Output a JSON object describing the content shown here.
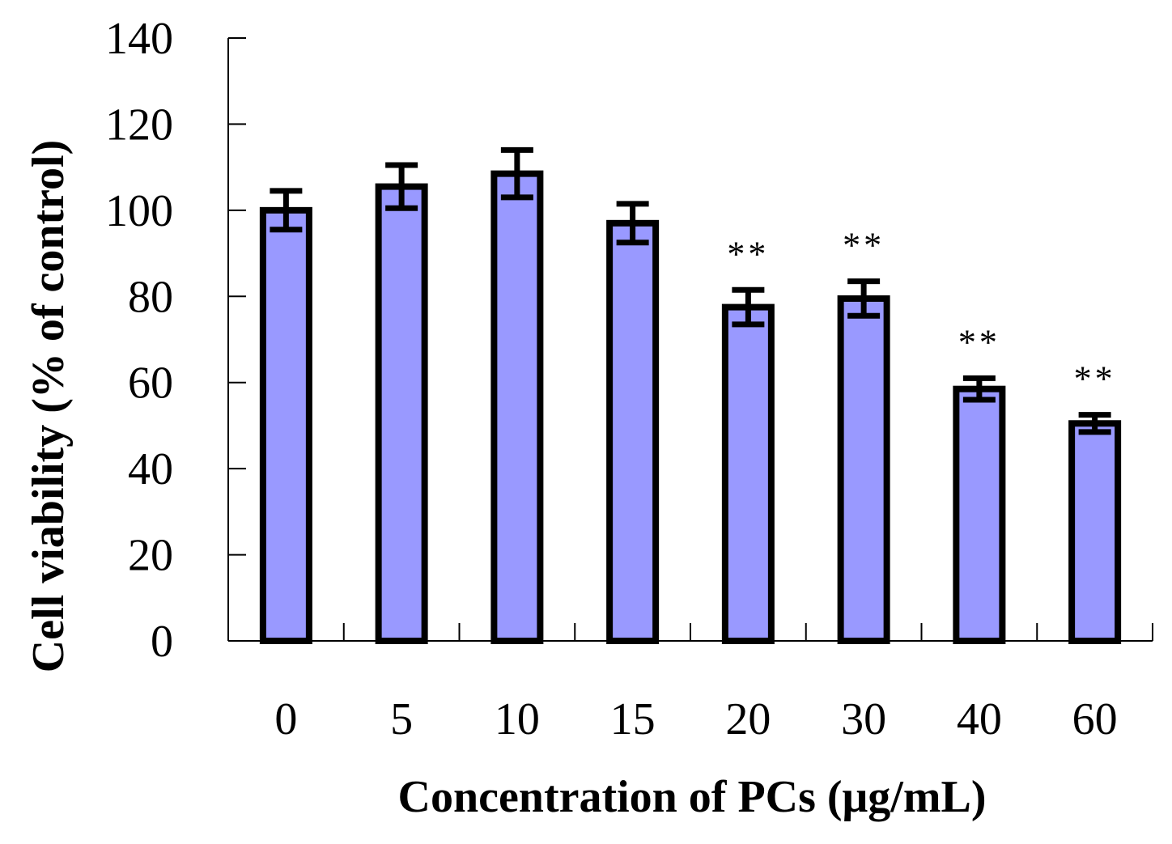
{
  "chart_data": {
    "type": "bar",
    "title": "",
    "xlabel": "Concentration of PCs (μg/mL)",
    "ylabel": "Cell viability (% of control)",
    "categories": [
      "0",
      "5",
      "10",
      "15",
      "20",
      "30",
      "40",
      "60"
    ],
    "values": [
      100,
      105.5,
      108.5,
      97,
      77.5,
      79.5,
      58.5,
      50.5
    ],
    "errors": [
      4.5,
      5,
      5.5,
      4.5,
      4,
      4,
      2.5,
      2
    ],
    "significance": [
      "",
      "",
      "",
      "",
      "**",
      "**",
      "**",
      "**"
    ],
    "ylim": [
      0,
      140
    ],
    "yticks": [
      "0",
      "20",
      "40",
      "60",
      "80",
      "100",
      "120",
      "140"
    ],
    "bar_color": "#9999ff",
    "edge_color": "#000000",
    "grid": false
  }
}
